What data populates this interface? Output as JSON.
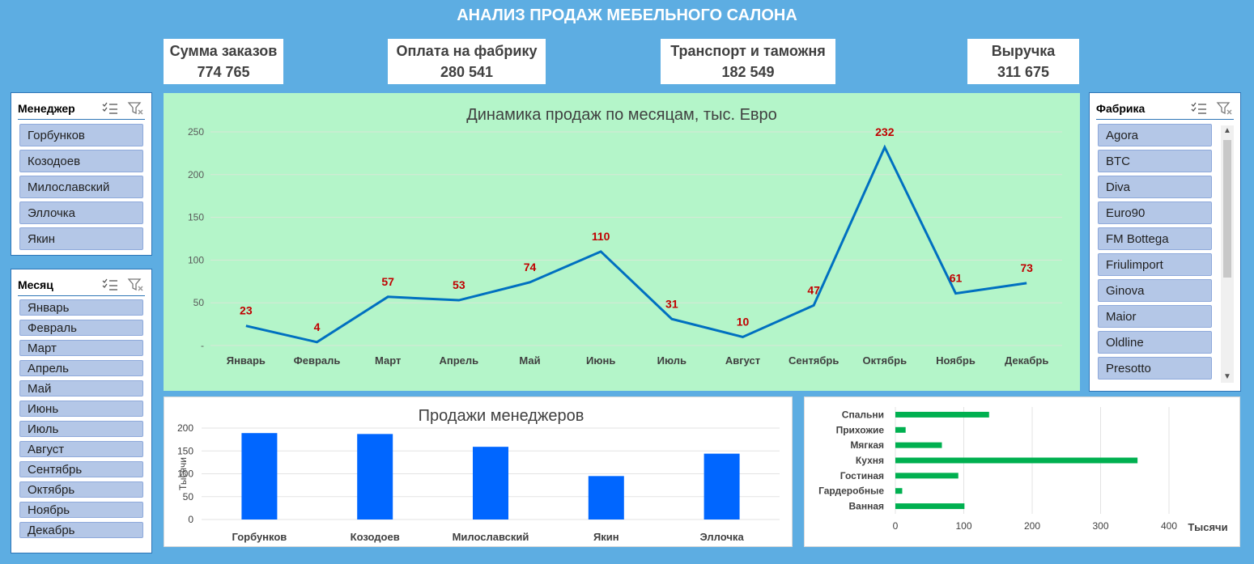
{
  "title": "АНАЛИЗ ПРОДАЖ МЕБЕЛЬНОГО САЛОНА",
  "kpis": [
    {
      "label": "Сумма заказов",
      "value": "774 765"
    },
    {
      "label": "Оплата на фабрику",
      "value": "280 541"
    },
    {
      "label": "Транспорт и таможня",
      "value": "182 549"
    },
    {
      "label": "Выручка",
      "value": "311 675"
    }
  ],
  "slicers": {
    "manager": {
      "title": "Менеджер",
      "items": [
        "Горбунков",
        "Козодоев",
        "Милославский",
        "Эллочка",
        "Якин"
      ]
    },
    "month": {
      "title": "Месяц",
      "items": [
        "Январь",
        "Февраль",
        "Март",
        "Апрель",
        "Май",
        "Июнь",
        "Июль",
        "Август",
        "Сентябрь",
        "Октябрь",
        "Ноябрь",
        "Декабрь"
      ]
    },
    "factory": {
      "title": "Фабрика",
      "items": [
        "Agora",
        "BTC",
        "Diva",
        "Euro90",
        "FM Bottega",
        "Friulimport",
        "Ginova",
        "Maior",
        "Oldline",
        "Presotto"
      ]
    }
  },
  "icons": {
    "multi_select": "multi-select-icon",
    "clear_filter": "clear-filter-icon",
    "scroll_up": "▲",
    "scroll_down": "▼"
  },
  "colors": {
    "background": "#5DADE2",
    "line": "#0070C0",
    "line_chart_bg": "#B4F5C9",
    "data_label": "#C00000",
    "bar_managers": "#0066FF",
    "bar_categories": "#00B050"
  },
  "chart_data": [
    {
      "type": "line",
      "title": "Динамика продаж по месяцам, тыс. Евро",
      "categories": [
        "Январь",
        "Февраль",
        "Март",
        "Апрель",
        "Май",
        "Июнь",
        "Июль",
        "Август",
        "Сентябрь",
        "Октябрь",
        "Ноябрь",
        "Декабрь"
      ],
      "values": [
        23,
        4,
        57,
        53,
        74,
        110,
        31,
        10,
        47,
        232,
        61,
        73
      ],
      "ylim": [
        0,
        250
      ],
      "yticks": [
        "-",
        "50",
        "100",
        "150",
        "200",
        "250"
      ],
      "grid": true
    },
    {
      "type": "bar",
      "title": "Продажи менеджеров",
      "categories": [
        "Горбунков",
        "Козодоев",
        "Милославский",
        "Якин",
        "Эллочка"
      ],
      "values": [
        189,
        187,
        159,
        95,
        144
      ],
      "ylabel": "Тысячи",
      "ylim": [
        0,
        200
      ],
      "yticks": [
        "0",
        "50",
        "100",
        "150",
        "200"
      ],
      "grid": true
    },
    {
      "type": "bar",
      "orientation": "horizontal",
      "categories": [
        "Спальни",
        "Прихожие",
        "Мягкая",
        "Кухня",
        "Гостиная",
        "Гардеробные",
        "Ванная"
      ],
      "values": [
        137,
        15,
        68,
        354,
        92,
        10,
        101
      ],
      "xlabel": "Тысячи",
      "xlim": [
        0,
        400
      ],
      "xticks": [
        "0",
        "100",
        "200",
        "300",
        "400"
      ],
      "grid": true
    }
  ]
}
